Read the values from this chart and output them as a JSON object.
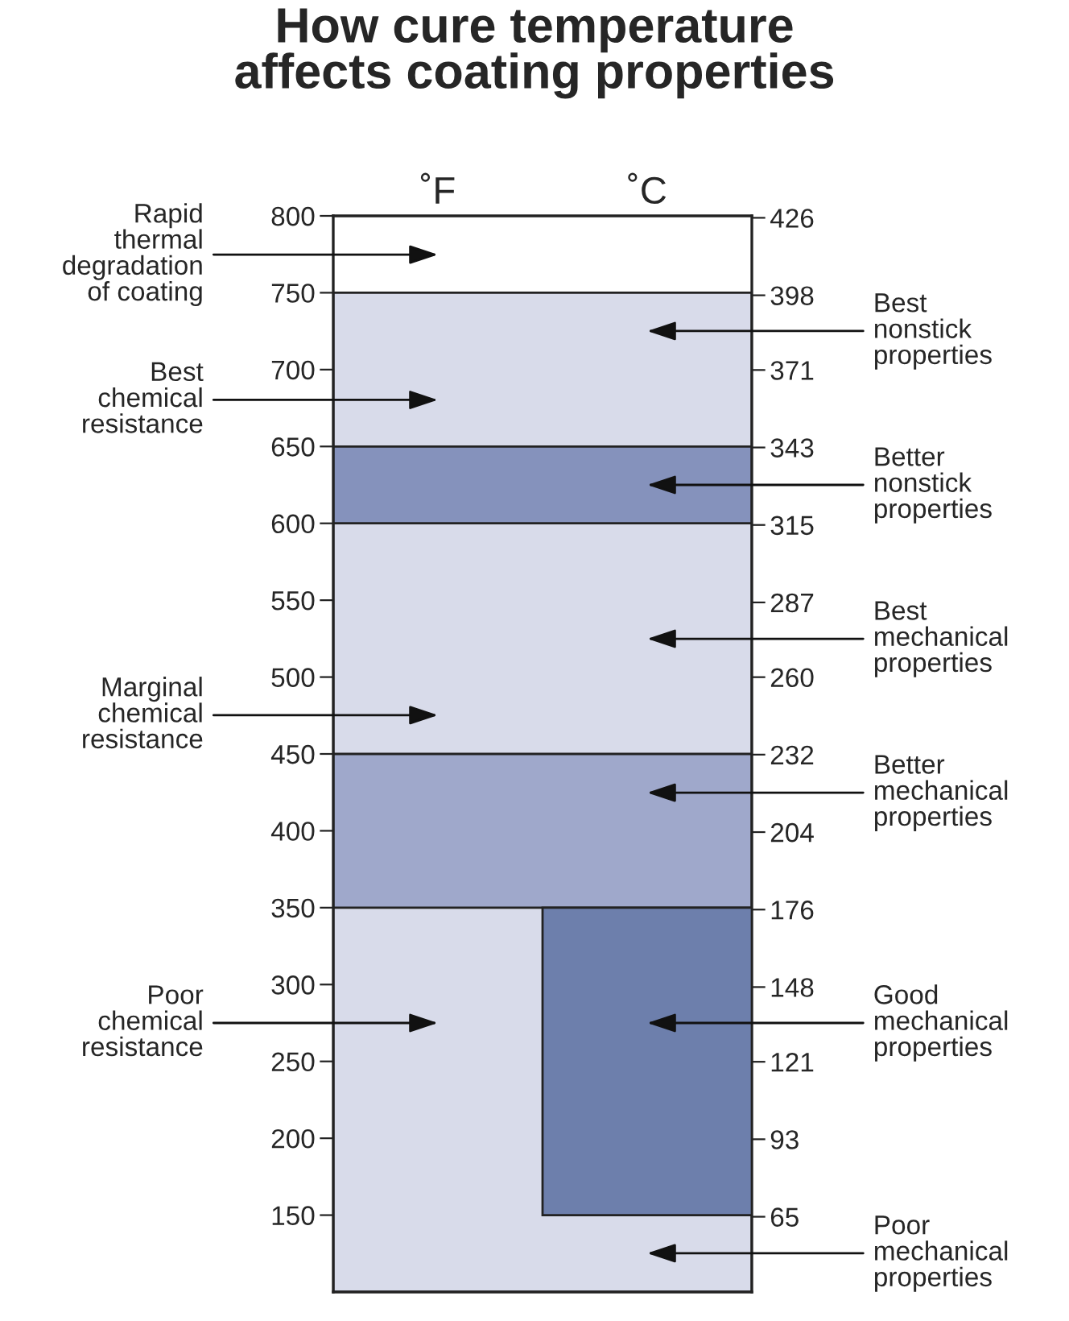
{
  "chart_data": {
    "type": "bar",
    "title": "How cure temperature\naffects coating properties",
    "categories": [
      "˚F",
      "˚C"
    ],
    "values": [
      null,
      200
    ],
    "base": [
      null,
      150
    ],
    "color": "#6d7fac",
    "ylim": [
      100,
      800
    ],
    "yticks": [
      150,
      200,
      250,
      300,
      350,
      400,
      450,
      500,
      550,
      600,
      650,
      700,
      750,
      800
    ],
    "y2lim": [
      37.8,
      426.7
    ],
    "y2ticks": [
      65,
      93,
      121,
      148,
      176,
      204,
      232,
      260,
      287,
      315,
      343,
      371,
      398,
      426
    ],
    "bands": [
      {
        "axis": "y",
        "from": 100,
        "to": 750,
        "color": "#d8dbea"
      },
      {
        "axis": "y",
        "from": 350,
        "to": 450,
        "color": "#9fa8cb"
      },
      {
        "axis": "y",
        "from": 600,
        "to": 650,
        "color": "#8592bc"
      }
    ],
    "annotations": [
      "Rapid\nthermal\ndegradation\nof coating",
      "Best\nchemical\nresistance",
      "Marginal\nchemical\nresistance",
      "Poor\nchemical\nresistance",
      "Best\nnonstick\nproperties",
      "Better\nnonstick\nproperties",
      "Best\nmechanical\nproperties",
      "Better\nmechanical\nproperties",
      "Good\nmechanical\nproperties",
      "Poor\nmechanical\nproperties"
    ]
  }
}
